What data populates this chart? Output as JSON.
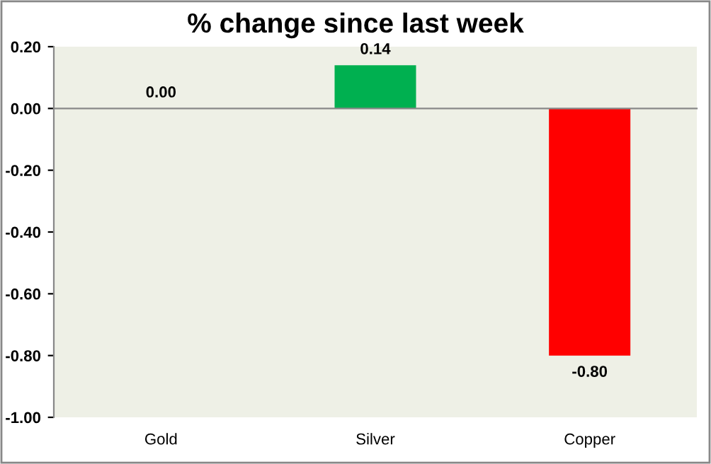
{
  "chart_data": {
    "type": "bar",
    "title": "% change since last week",
    "categories": [
      "Gold",
      "Silver",
      "Copper"
    ],
    "values": [
      0.0,
      0.14,
      -0.8
    ],
    "colors": [
      "#00b050",
      "#00b050",
      "#ff0000"
    ],
    "value_labels": [
      "0.00",
      "0.14",
      "-0.80"
    ],
    "ylim": [
      -1.0,
      0.2
    ],
    "yticks": [
      {
        "value": 0.2,
        "label": "0.20"
      },
      {
        "value": 0.0,
        "label": "0.00"
      },
      {
        "value": -0.2,
        "label": "-0.20"
      },
      {
        "value": -0.4,
        "label": "-0.40"
      },
      {
        "value": -0.6,
        "label": "-0.60"
      },
      {
        "value": -0.8,
        "label": "-0.80"
      },
      {
        "value": -1.0,
        "label": "-1.00"
      }
    ],
    "legend": false
  }
}
